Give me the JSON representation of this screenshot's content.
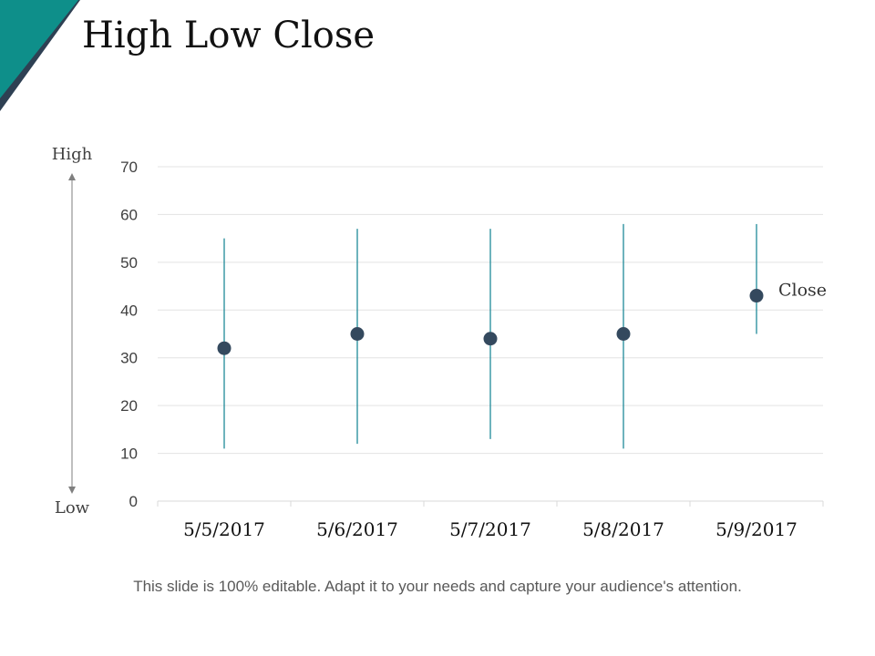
{
  "slide": {
    "title": "High Low Close",
    "footer": "This slide is 100% editable. Adapt it to your needs and capture your audience's attention.",
    "accent_color": "#0e8f8a",
    "accent_dark": "#2e4053"
  },
  "chart_data": {
    "type": "stock-hlc",
    "title": "",
    "categories": [
      "5/5/2017",
      "5/6/2017",
      "5/7/2017",
      "5/8/2017",
      "5/9/2017"
    ],
    "high": [
      55,
      57,
      57,
      58,
      58
    ],
    "low": [
      11,
      12,
      13,
      11,
      35
    ],
    "close": [
      32,
      35,
      34,
      35,
      43
    ],
    "ylim": [
      0,
      70
    ],
    "yticks": [
      0,
      10,
      20,
      30,
      40,
      50,
      60,
      70
    ],
    "grid": true,
    "axis_arrow": {
      "top_label": "High",
      "bottom_label": "Low"
    },
    "series_label": "Close",
    "colors": {
      "hl_line": "#1f8a99",
      "marker": "#34495e",
      "grid": "#e3e3e3",
      "axis": "#d9d9d9",
      "tick_text": "#404040",
      "category_text": "#111111",
      "arrow": "#7f7f7f"
    }
  }
}
